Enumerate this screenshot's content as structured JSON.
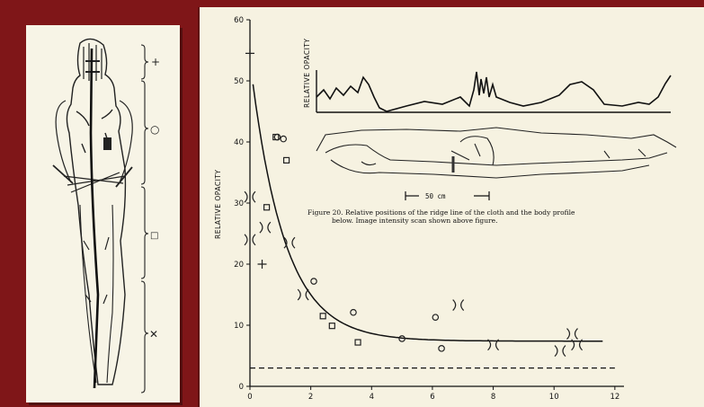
{
  "left_figure": {
    "brackets": [
      {
        "symbol": "+"
      },
      {
        "symbol": "○"
      },
      {
        "symbol": "□"
      },
      {
        "symbol": "✕"
      }
    ]
  },
  "chart_data": {
    "type": "scatter",
    "ylabel": "RELATIVE OPACITY",
    "xlim": [
      0,
      12.3
    ],
    "ylim": [
      0,
      60
    ],
    "xticks": [
      "0",
      "2",
      "4",
      "6",
      "8",
      "10",
      "12"
    ],
    "yticks": [
      "0",
      "10",
      "20",
      "30",
      "40",
      "50",
      "60"
    ],
    "series": [
      {
        "marker": "plus",
        "points": [
          [
            0,
            54.5
          ],
          [
            0.4,
            20
          ]
        ]
      },
      {
        "marker": "circle",
        "points": [
          [
            0.9,
            40.8
          ],
          [
            1.1,
            40.5
          ],
          [
            2.1,
            17.2
          ],
          [
            3.4,
            12.1
          ],
          [
            5.0,
            7.8
          ],
          [
            6.1,
            11.3
          ],
          [
            6.3,
            6.2
          ]
        ]
      },
      {
        "marker": "square",
        "points": [
          [
            0.85,
            40.8
          ],
          [
            1.2,
            37
          ],
          [
            0.55,
            29.3
          ],
          [
            2.4,
            11.5
          ],
          [
            2.7,
            9.9
          ],
          [
            3.55,
            7.2
          ]
        ]
      },
      {
        "marker": "x",
        "points": [
          [
            0,
            31
          ],
          [
            0,
            24
          ],
          [
            0.5,
            26
          ],
          [
            1.3,
            23.5
          ],
          [
            1.75,
            15
          ],
          [
            6.85,
            13.3
          ],
          [
            8.0,
            6.8
          ],
          [
            10.2,
            5.8
          ],
          [
            10.6,
            8.6
          ],
          [
            10.75,
            6.8
          ]
        ]
      }
    ],
    "fit_curve": {
      "type": "exponential decay",
      "a": 46,
      "k": 0.9,
      "c": 7.4,
      "x_range": [
        0.1,
        11.6
      ]
    },
    "baseline": {
      "style": "dashed",
      "y": 3
    }
  },
  "inset": {
    "ylabel": "RELATIVE OPACITY",
    "scale_label": "50 cm",
    "caption_line1": "Figure 20.  Relative positions of the ridge line of the cloth and the body profile",
    "caption_line2": "below.  Image intensity scan shown above figure."
  }
}
